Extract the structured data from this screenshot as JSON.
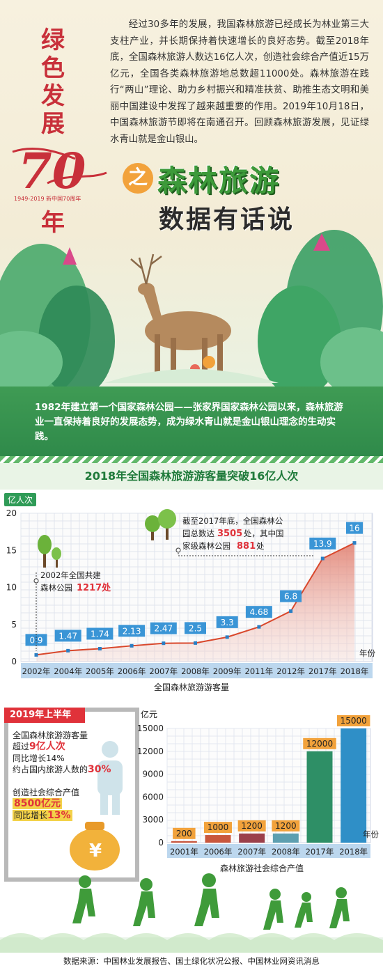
{
  "header": {
    "intro": "经过30多年的发展，我国森林旅游已经成长为林业第三大支柱产业，并长期保持着快速增长的良好态势。截至2018年底，全国森林旅游人数达16亿人次，创造社会综合产值近15万亿元，全国各类森林旅游地总数超11000处。森林旅游在践行“两山”理论、助力乡村振兴和精准扶贫、助推生态文明和美丽中国建设中发挥了越来越重要的作用。2019年10月18日，中国森林旅游节即将在南通召开。回顾森林旅游发展，见证绿水青山就是金山银山。",
    "vertical_title": [
      "绿",
      "色",
      "发",
      "展",
      "年"
    ],
    "seventy": "70",
    "seventy_sub": "1949-2019 新中国70周年",
    "zhi": "之",
    "title_line1": "森林旅游",
    "title_line2": "数据有话说"
  },
  "band": {
    "text": "1982年建立第一个国家森林公园——张家界国家森林公园以来，森林旅游业一直保持着良好的发展态势，成为绿水青山就是金山银山理念的生动实践。"
  },
  "section_title": "2018年全国森林旅游游客量突破16亿人次",
  "chart_data": [
    {
      "type": "area",
      "ylabel": "亿人次",
      "xlabel": "年份",
      "caption": "全国森林旅游游客量",
      "ylim": [
        0,
        20
      ],
      "yticks": [
        0,
        5,
        10,
        15,
        20
      ],
      "grid": true,
      "categories": [
        "2002年",
        "2004年",
        "2005年",
        "2006年",
        "2007年",
        "2008年",
        "2009年",
        "2011年",
        "2012年",
        "2017年",
        "2018年"
      ],
      "values": [
        0.9,
        1.47,
        1.74,
        2.13,
        2.47,
        2.5,
        3.3,
        4.68,
        6.8,
        13.9,
        16
      ],
      "value_labels": [
        "0.9",
        "1.47",
        "1.74",
        "2.13",
        "2.47",
        "2.5",
        "3.3",
        "4.68",
        "6.8",
        "13.9",
        "16"
      ],
      "line_color": "#d9472b",
      "annotations": [
        {
          "category": "2002年",
          "lines": [
            "2002年全国共建",
            "森林公园"
          ],
          "highlight": "1217处"
        },
        {
          "category": "2017年",
          "lines": [
            "截至2017年底，全国森林公",
            "园总数达",
            "处，其中国",
            "家级森林公园",
            "处"
          ],
          "highlight_total": "3505",
          "highlight_national": "881"
        }
      ]
    },
    {
      "type": "bar",
      "ylabel": "亿元",
      "xlabel": "年份",
      "caption": "森林旅游社会综合产值",
      "ylim": [
        0,
        15000
      ],
      "yticks": [
        0,
        3000,
        6000,
        9000,
        12000,
        15000
      ],
      "grid": true,
      "categories": [
        "2001年",
        "2006年",
        "2007年",
        "2008年",
        "2017年",
        "2018年"
      ],
      "values": [
        200,
        1000,
        1200,
        1200,
        12000,
        15000
      ],
      "value_labels": [
        "200",
        "1000",
        "1200",
        "1200",
        "12000",
        "15000"
      ],
      "colors": [
        "#c9573d",
        "#c9573d",
        "#9b3f4a",
        "#5d9fb0",
        "#2e8f66",
        "#2f8fc7"
      ]
    }
  ],
  "panel": {
    "tag": "2019年上半年",
    "l1": "全国森林旅游游客量",
    "l2a": "超过",
    "l2b": "9亿人次",
    "l3": "同比增长14%",
    "l4a": "约占国内旅游人数的",
    "l4b": "30%",
    "l5": "创造社会综合产值",
    "l6": "8500亿元",
    "l7a": "同比增长",
    "l7b": "13%"
  },
  "source": "数据来源：中国林业发展报告、国土绿化状况公报、中国林业网资讯消息",
  "colors": {
    "brand_green": "#2f9b57",
    "title_red": "#c8303a",
    "accent_orange": "#f2a23b",
    "value_label_bg": "#3a95d6"
  }
}
